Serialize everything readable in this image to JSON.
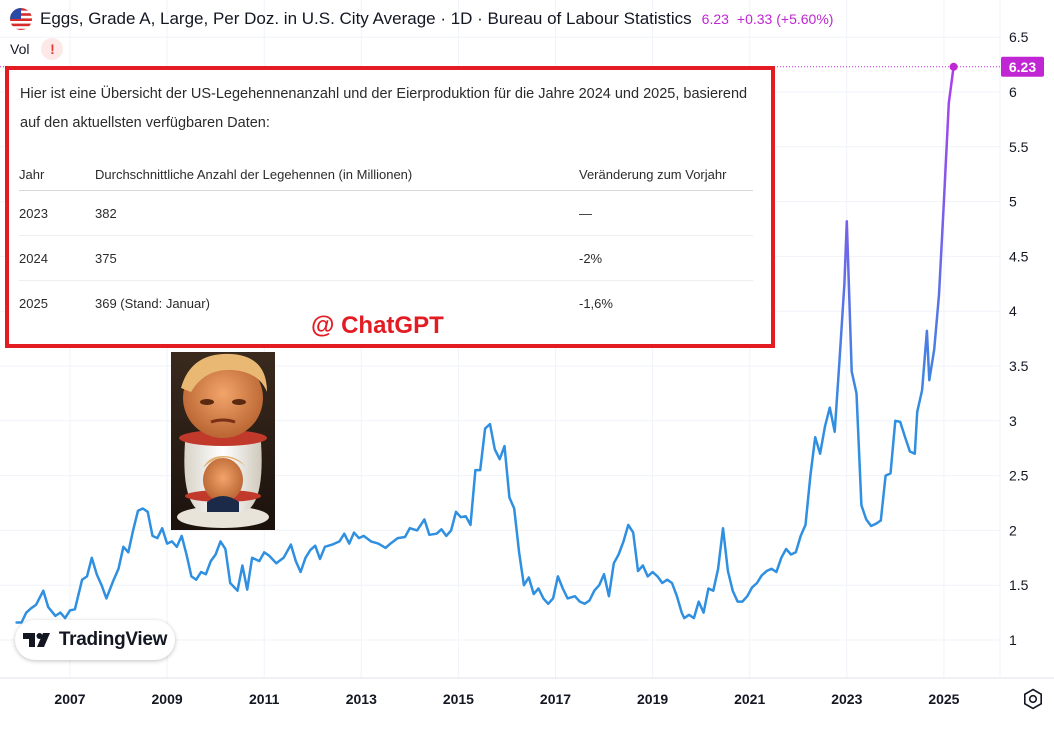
{
  "header": {
    "title": "Eggs, Grade A, Large, Per Doz. in U.S. City Average · 1D · Bureau of Labour Statistics",
    "price": "6.23",
    "change": "+0.33 (+5.60%)",
    "vol_label": "Vol",
    "warning_symbol": "!"
  },
  "overlay": {
    "intro": "Hier ist eine Übersicht der US-Legehennenanzahl und der Eierproduktion für die Jahre 2024 und 2025, basierend auf den aktuellsten verfügbaren Daten:",
    "headers": [
      "Jahr",
      "Durchschnittliche Anzahl der Legehennen (in Millionen)",
      "Veränderung zum Vorjahr"
    ],
    "rows": [
      [
        "2023",
        "382",
        "—"
      ],
      [
        "2024",
        "375",
        "-2%"
      ],
      [
        "2025",
        "369 (Stand: Januar)",
        "-1,6%"
      ]
    ],
    "watermark": "@ ChatGPT"
  },
  "logo": {
    "text": "TradingView"
  },
  "colors": {
    "line_start": "#2f8fe0",
    "line_end": "#b13bf0",
    "last_price": "#c026d3",
    "border": "#e31b23"
  },
  "chart_data": {
    "type": "line",
    "title": "Eggs, Grade A, Large, Per Doz. in U.S. City Average",
    "xlabel": "",
    "ylabel": "",
    "x_ticks": [
      "2007",
      "2009",
      "2011",
      "2013",
      "2015",
      "2017",
      "2019",
      "2021",
      "2023",
      "2025"
    ],
    "y_ticks": [
      "1",
      "1.5",
      "2",
      "2.5",
      "3",
      "3.5",
      "4",
      "4.5",
      "5",
      "5.5",
      "6",
      "6.5"
    ],
    "ylim": [
      0.6,
      6.85
    ],
    "xlim": [
      2005.9,
      2026.5
    ],
    "last_value_label": "6.23",
    "series": [
      {
        "name": "",
        "points": [
          [
            2005.9,
            1.16
          ],
          [
            2006.0,
            1.16
          ],
          [
            2006.1,
            1.25
          ],
          [
            2006.2,
            1.29
          ],
          [
            2006.3,
            1.32
          ],
          [
            2006.45,
            1.45
          ],
          [
            2006.55,
            1.3
          ],
          [
            2006.7,
            1.22
          ],
          [
            2006.8,
            1.25
          ],
          [
            2006.9,
            1.2
          ],
          [
            2007.0,
            1.27
          ],
          [
            2007.1,
            1.28
          ],
          [
            2007.25,
            1.55
          ],
          [
            2007.35,
            1.58
          ],
          [
            2007.45,
            1.75
          ],
          [
            2007.55,
            1.6
          ],
          [
            2007.65,
            1.5
          ],
          [
            2007.75,
            1.38
          ],
          [
            2007.9,
            1.55
          ],
          [
            2008.0,
            1.65
          ],
          [
            2008.1,
            1.85
          ],
          [
            2008.2,
            1.8
          ],
          [
            2008.3,
            2.0
          ],
          [
            2008.4,
            2.18
          ],
          [
            2008.5,
            2.2
          ],
          [
            2008.6,
            2.17
          ],
          [
            2008.7,
            1.95
          ],
          [
            2008.8,
            1.93
          ],
          [
            2008.9,
            2.02
          ],
          [
            2009.0,
            1.88
          ],
          [
            2009.1,
            1.9
          ],
          [
            2009.2,
            1.85
          ],
          [
            2009.3,
            1.95
          ],
          [
            2009.4,
            1.78
          ],
          [
            2009.5,
            1.58
          ],
          [
            2009.6,
            1.55
          ],
          [
            2009.7,
            1.62
          ],
          [
            2009.8,
            1.6
          ],
          [
            2009.9,
            1.72
          ],
          [
            2010.0,
            1.78
          ],
          [
            2010.1,
            1.9
          ],
          [
            2010.2,
            1.83
          ],
          [
            2010.3,
            1.52
          ],
          [
            2010.45,
            1.45
          ],
          [
            2010.55,
            1.68
          ],
          [
            2010.65,
            1.46
          ],
          [
            2010.75,
            1.75
          ],
          [
            2010.9,
            1.72
          ],
          [
            2011.0,
            1.8
          ],
          [
            2011.1,
            1.77
          ],
          [
            2011.25,
            1.7
          ],
          [
            2011.4,
            1.75
          ],
          [
            2011.55,
            1.87
          ],
          [
            2011.65,
            1.72
          ],
          [
            2011.75,
            1.62
          ],
          [
            2011.85,
            1.75
          ],
          [
            2011.95,
            1.82
          ],
          [
            2012.05,
            1.86
          ],
          [
            2012.15,
            1.74
          ],
          [
            2012.25,
            1.85
          ],
          [
            2012.4,
            1.87
          ],
          [
            2012.55,
            1.9
          ],
          [
            2012.65,
            1.97
          ],
          [
            2012.75,
            1.88
          ],
          [
            2012.85,
            1.98
          ],
          [
            2012.95,
            1.93
          ],
          [
            2013.05,
            1.95
          ],
          [
            2013.2,
            1.9
          ],
          [
            2013.35,
            1.88
          ],
          [
            2013.5,
            1.84
          ],
          [
            2013.6,
            1.88
          ],
          [
            2013.75,
            1.93
          ],
          [
            2013.9,
            1.94
          ],
          [
            2014.0,
            2.02
          ],
          [
            2014.15,
            2.0
          ],
          [
            2014.3,
            2.1
          ],
          [
            2014.4,
            1.96
          ],
          [
            2014.55,
            1.97
          ],
          [
            2014.65,
            2.01
          ],
          [
            2014.75,
            1.95
          ],
          [
            2014.85,
            2.0
          ],
          [
            2014.95,
            2.17
          ],
          [
            2015.05,
            2.12
          ],
          [
            2015.15,
            2.13
          ],
          [
            2015.25,
            2.05
          ],
          [
            2015.35,
            2.55
          ],
          [
            2015.45,
            2.55
          ],
          [
            2015.55,
            2.93
          ],
          [
            2015.65,
            2.97
          ],
          [
            2015.75,
            2.74
          ],
          [
            2015.85,
            2.65
          ],
          [
            2015.95,
            2.77
          ],
          [
            2016.05,
            2.3
          ],
          [
            2016.15,
            2.2
          ],
          [
            2016.25,
            1.8
          ],
          [
            2016.35,
            1.5
          ],
          [
            2016.45,
            1.57
          ],
          [
            2016.55,
            1.42
          ],
          [
            2016.65,
            1.47
          ],
          [
            2016.75,
            1.38
          ],
          [
            2016.85,
            1.33
          ],
          [
            2016.95,
            1.38
          ],
          [
            2017.05,
            1.58
          ],
          [
            2017.15,
            1.47
          ],
          [
            2017.25,
            1.38
          ],
          [
            2017.4,
            1.4
          ],
          [
            2017.5,
            1.35
          ],
          [
            2017.6,
            1.33
          ],
          [
            2017.7,
            1.36
          ],
          [
            2017.8,
            1.45
          ],
          [
            2017.9,
            1.5
          ],
          [
            2018.0,
            1.6
          ],
          [
            2018.1,
            1.4
          ],
          [
            2018.2,
            1.7
          ],
          [
            2018.3,
            1.78
          ],
          [
            2018.4,
            1.9
          ],
          [
            2018.5,
            2.05
          ],
          [
            2018.6,
            1.98
          ],
          [
            2018.7,
            1.63
          ],
          [
            2018.8,
            1.68
          ],
          [
            2018.9,
            1.58
          ],
          [
            2019.0,
            1.62
          ],
          [
            2019.1,
            1.58
          ],
          [
            2019.2,
            1.52
          ],
          [
            2019.3,
            1.55
          ],
          [
            2019.4,
            1.52
          ],
          [
            2019.5,
            1.4
          ],
          [
            2019.6,
            1.25
          ],
          [
            2019.65,
            1.2
          ],
          [
            2019.75,
            1.23
          ],
          [
            2019.85,
            1.2
          ],
          [
            2019.95,
            1.35
          ],
          [
            2020.05,
            1.25
          ],
          [
            2020.15,
            1.47
          ],
          [
            2020.25,
            1.45
          ],
          [
            2020.35,
            1.65
          ],
          [
            2020.45,
            2.02
          ],
          [
            2020.55,
            1.63
          ],
          [
            2020.65,
            1.45
          ],
          [
            2020.75,
            1.35
          ],
          [
            2020.85,
            1.35
          ],
          [
            2020.95,
            1.4
          ],
          [
            2021.05,
            1.48
          ],
          [
            2021.15,
            1.52
          ],
          [
            2021.25,
            1.59
          ],
          [
            2021.35,
            1.63
          ],
          [
            2021.45,
            1.65
          ],
          [
            2021.55,
            1.62
          ],
          [
            2021.65,
            1.75
          ],
          [
            2021.75,
            1.83
          ],
          [
            2021.85,
            1.78
          ],
          [
            2021.95,
            1.8
          ],
          [
            2022.05,
            1.95
          ],
          [
            2022.15,
            2.05
          ],
          [
            2022.25,
            2.5
          ],
          [
            2022.35,
            2.85
          ],
          [
            2022.45,
            2.7
          ],
          [
            2022.55,
            2.95
          ],
          [
            2022.65,
            3.12
          ],
          [
            2022.75,
            2.9
          ],
          [
            2022.85,
            3.55
          ],
          [
            2022.95,
            4.25
          ],
          [
            2023.0,
            4.82
          ],
          [
            2023.1,
            3.45
          ],
          [
            2023.2,
            3.25
          ],
          [
            2023.3,
            2.23
          ],
          [
            2023.4,
            2.1
          ],
          [
            2023.5,
            2.04
          ],
          [
            2023.6,
            2.06
          ],
          [
            2023.7,
            2.09
          ],
          [
            2023.8,
            2.5
          ],
          [
            2023.9,
            2.52
          ],
          [
            2024.0,
            3.0
          ],
          [
            2024.1,
            2.99
          ],
          [
            2024.2,
            2.85
          ],
          [
            2024.3,
            2.72
          ],
          [
            2024.4,
            2.7
          ],
          [
            2024.45,
            3.08
          ],
          [
            2024.55,
            3.28
          ],
          [
            2024.65,
            3.82
          ],
          [
            2024.7,
            3.37
          ],
          [
            2024.8,
            3.65
          ],
          [
            2024.9,
            4.15
          ],
          [
            2025.0,
            5.0
          ],
          [
            2025.1,
            5.9
          ],
          [
            2025.2,
            6.23
          ]
        ]
      }
    ]
  }
}
